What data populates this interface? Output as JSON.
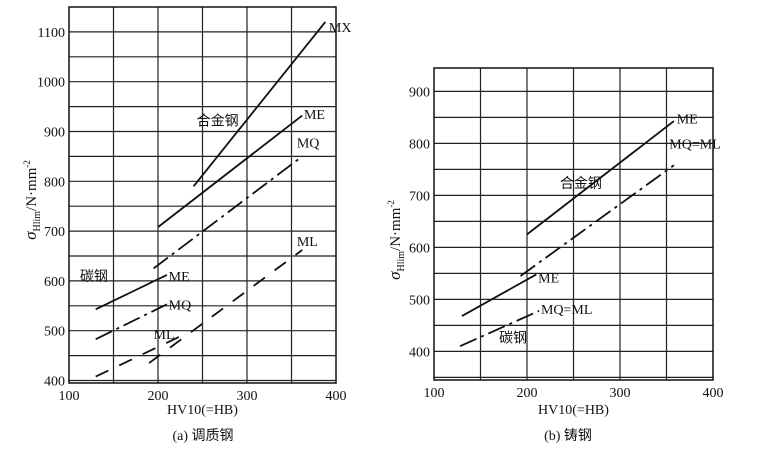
{
  "chart_data": [
    {
      "type": "line",
      "caption": "(a) 调质钢",
      "xlabel": "HV10(=HB)",
      "ylabel_main": "σ",
      "ylabel_sub": "Hlim",
      "ylabel_unit": "/N·mm",
      "ylabel_sup": "-2",
      "xlim": [
        100,
        400
      ],
      "ylim": [
        395,
        1150
      ],
      "xticks": [
        100,
        200,
        300,
        400
      ],
      "yticks": [
        400,
        500,
        600,
        700,
        800,
        900,
        1000,
        1100
      ],
      "grid": true,
      "group_labels": [
        "合金钢",
        "碳钢"
      ],
      "series": [
        {
          "name": "MX",
          "group": "合金钢",
          "style": "solid",
          "points": [
            [
              240,
              790
            ],
            [
              388,
              1120
            ]
          ]
        },
        {
          "name": "ME",
          "group": "合金钢",
          "style": "solid",
          "points": [
            [
              200,
              708
            ],
            [
              362,
              932
            ]
          ]
        },
        {
          "name": "MQ",
          "group": "合金钢",
          "style": "dashdot",
          "points": [
            [
              195,
              625
            ],
            [
              362,
              850
            ]
          ]
        },
        {
          "name": "ML",
          "group": "合金钢",
          "style": "dashed",
          "points": [
            [
              190,
              435
            ],
            [
              362,
              662
            ]
          ]
        },
        {
          "name": "ME",
          "group": "碳钢",
          "style": "solid",
          "points": [
            [
              130,
              543
            ],
            [
              210,
              612
            ]
          ]
        },
        {
          "name": "MQ",
          "group": "碳钢",
          "style": "dashdot",
          "points": [
            [
              130,
              483
            ],
            [
              210,
              553
            ]
          ]
        },
        {
          "name": "ML",
          "group": "碳钢",
          "style": "dashed",
          "points": [
            [
              130,
              408
            ],
            [
              235,
              497
            ]
          ]
        }
      ]
    },
    {
      "type": "line",
      "caption": "(b) 铸钢",
      "xlabel": "HV10(=HB)",
      "ylabel_main": "σ",
      "ylabel_sub": "Hlim",
      "ylabel_unit": "/N·mm",
      "ylabel_sup": "-2",
      "xlim": [
        100,
        400
      ],
      "ylim": [
        345,
        945
      ],
      "xticks": [
        100,
        200,
        300,
        400
      ],
      "yticks": [
        400,
        500,
        600,
        700,
        800,
        900
      ],
      "grid": true,
      "group_labels": [
        "合金钢",
        "碳钢"
      ],
      "series": [
        {
          "name": "ME",
          "group": "合金钢",
          "style": "solid",
          "points": [
            [
              200,
              625
            ],
            [
              358,
              843
            ]
          ]
        },
        {
          "name": "MQ=ML",
          "group": "合金钢",
          "style": "dashdot",
          "points": [
            [
              193,
              545
            ],
            [
              358,
              758
            ]
          ]
        },
        {
          "name": "ME",
          "group": "碳钢",
          "style": "solid",
          "points": [
            [
              130,
              468
            ],
            [
              210,
              548
            ]
          ]
        },
        {
          "name": "MQ=ML",
          "group": "碳钢",
          "style": "dashdot",
          "points": [
            [
              128,
              410
            ],
            [
              213,
              478
            ]
          ]
        }
      ]
    }
  ]
}
